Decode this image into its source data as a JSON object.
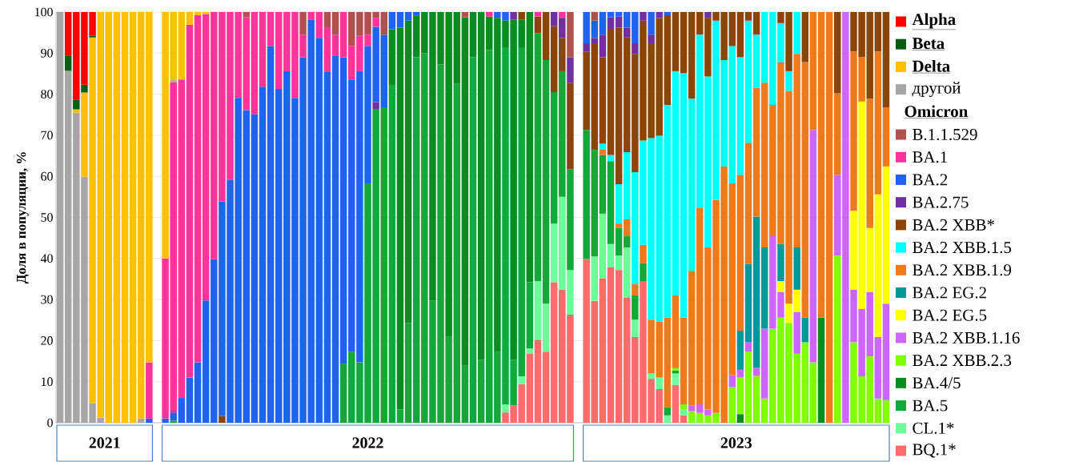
{
  "chart_data": {
    "type": "bar",
    "stacked": true,
    "ylabel": "Доля в популяции, %",
    "ylim": [
      0,
      100
    ],
    "yticks": [
      0,
      10,
      20,
      30,
      40,
      50,
      60,
      70,
      80,
      90,
      100
    ],
    "grid": "y",
    "legend": "right",
    "legend_title": "Omicron",
    "annotations": [
      "2021",
      "2022",
      "2023"
    ],
    "categories": [
      null,
      null,
      null,
      null,
      null,
      null,
      null,
      null,
      null,
      null,
      null,
      null,
      null,
      null,
      null,
      null,
      null,
      null,
      null,
      null,
      null,
      null,
      null,
      null,
      null,
      null,
      null,
      null,
      null,
      null,
      null,
      null,
      null,
      null,
      null,
      null,
      null,
      null,
      null,
      null,
      null,
      null,
      null,
      null,
      null,
      null,
      null,
      null,
      null,
      null,
      null,
      null,
      null,
      null,
      null,
      null,
      null,
      null,
      null,
      null,
      null,
      null,
      null,
      null,
      null,
      null,
      null,
      null,
      null,
      null,
      null,
      null,
      null,
      null,
      null,
      null,
      null,
      null,
      null,
      null,
      null,
      null,
      null,
      null,
      null,
      null,
      null,
      null,
      null,
      null,
      null,
      null,
      null,
      null,
      null,
      null,
      null,
      null,
      null,
      null,
      null,
      null,
      null
    ],
    "series": [
      {
        "name": "BQ.1*",
        "color": "#ff6b6b",
        "values": [
          null,
          null,
          null,
          null,
          null,
          null,
          null,
          null,
          null,
          null,
          null,
          null,
          null,
          null,
          null,
          null,
          null,
          null,
          null,
          null,
          null,
          null,
          null,
          null,
          null,
          null,
          null,
          null,
          null,
          null,
          null,
          null,
          null,
          null,
          null,
          null,
          null,
          null,
          null,
          null,
          null,
          null,
          null,
          null,
          null,
          null,
          null,
          null,
          null,
          null,
          null,
          null,
          null,
          null,
          null,
          2.5,
          4.2,
          9.4,
          16.8,
          20.1,
          17.3,
          34.2,
          32.4,
          26.3,
          null,
          39.9,
          29.7,
          35.2,
          37.9,
          37.2,
          30.5,
          20.9,
          34.5,
          10.7,
          8.2,
          null,
          9.2,
          1.8,
          null,
          null,
          null,
          null,
          null,
          null,
          null,
          null,
          null,
          null,
          null,
          null,
          null,
          null,
          null,
          null,
          null,
          null,
          null,
          null,
          null,
          null,
          null,
          null,
          null
        ]
      },
      {
        "name": "CL.1*",
        "color": "#6cfc9a",
        "values": [
          null,
          null,
          null,
          null,
          null,
          null,
          null,
          null,
          null,
          null,
          null,
          null,
          null,
          null,
          null,
          null,
          null,
          null,
          null,
          null,
          null,
          null,
          null,
          null,
          null,
          null,
          null,
          null,
          null,
          null,
          null,
          null,
          null,
          null,
          null,
          null,
          null,
          null,
          null,
          null,
          null,
          null,
          null,
          null,
          null,
          null,
          null,
          null,
          null,
          null,
          null,
          null,
          null,
          null,
          null,
          2.0,
          null,
          1.9,
          1.3,
          14.4,
          11.7,
          14.3,
          22.6,
          10.9,
          null,
          null,
          10.8,
          15.7,
          5.6,
          3.5,
          12.2,
          4.2,
          null,
          1.3,
          2.8,
          1.8,
          2.8,
          1.4,
          null,
          null,
          null,
          null,
          null,
          null,
          null,
          null,
          null,
          null,
          null,
          null,
          null,
          null,
          null,
          null,
          null,
          null,
          null,
          null,
          null,
          null,
          null,
          null,
          null
        ]
      },
      {
        "name": "BA.5",
        "color": "#12a83a",
        "values": [
          null,
          null,
          null,
          null,
          null,
          null,
          null,
          null,
          null,
          null,
          null,
          null,
          null,
          null,
          0.5,
          null,
          null,
          null,
          null,
          null,
          null,
          null,
          null,
          null,
          null,
          null,
          null,
          null,
          null,
          null,
          null,
          null,
          null,
          null,
          null,
          14.4,
          17.3,
          14.7,
          58.3,
          76.4,
          76.8,
          82.1,
          3.2,
          24.3,
          89.0,
          90.0,
          29.8,
          87.3,
          20.9,
          82.6,
          14.0,
          89.0,
          15.3,
          90.8,
          17.2,
          86.9,
          11.1,
          80.1,
          16.1,
          60.4,
          59.3,
          32.0,
          30.6,
          24.5,
          null,
          31.4,
          25.9,
          14.3,
          20.2,
          6.7,
          2.7,
          5.9,
          4.4,
          null,
          null,
          2.0,
          0.7,
          null,
          null,
          null,
          null,
          null,
          null,
          null,
          null,
          null,
          null,
          null,
          null,
          null,
          null,
          null,
          null,
          null,
          null,
          null,
          null,
          null,
          null,
          null,
          null,
          null,
          null
        ]
      },
      {
        "name": "BA.4/5",
        "color": "#098c20",
        "values": [
          null,
          null,
          null,
          null,
          null,
          null,
          null,
          null,
          null,
          null,
          null,
          null,
          null,
          null,
          null,
          null,
          null,
          null,
          null,
          null,
          null,
          null,
          null,
          null,
          null,
          null,
          null,
          null,
          null,
          null,
          null,
          null,
          null,
          null,
          null,
          null,
          null,
          null,
          null,
          null,
          null,
          13.7,
          93.0,
          73.6,
          10.2,
          10.0,
          70.2,
          12.7,
          79.1,
          17.4,
          84.7,
          11.0,
          84.7,
          8.1,
          81.4,
          6.5,
          82.9,
          6.8,
          65.8,
          null,
          null,
          null,
          null,
          null,
          null,
          null,
          null,
          null,
          null,
          null,
          null,
          null,
          null,
          null,
          null,
          null,
          null,
          null,
          null,
          null,
          null,
          null,
          null,
          null,
          2.1,
          null,
          null,
          null,
          null,
          null,
          null,
          null,
          null,
          null,
          25.6,
          null,
          null,
          null,
          null,
          null,
          null,
          null,
          null
        ]
      },
      {
        "name": "BA.2 XBB.2.3",
        "color": "#80ff00",
        "values": [
          null,
          null,
          null,
          null,
          null,
          null,
          null,
          null,
          null,
          null,
          null,
          null,
          null,
          null,
          null,
          null,
          null,
          null,
          null,
          null,
          null,
          null,
          null,
          null,
          null,
          null,
          null,
          null,
          null,
          null,
          null,
          null,
          null,
          null,
          null,
          null,
          null,
          null,
          null,
          null,
          null,
          null,
          null,
          null,
          null,
          null,
          null,
          null,
          null,
          null,
          null,
          null,
          null,
          null,
          null,
          null,
          null,
          null,
          null,
          null,
          null,
          null,
          null,
          null,
          null,
          null,
          null,
          null,
          null,
          null,
          null,
          null,
          null,
          null,
          null,
          null,
          0.6,
          1.3,
          2.9,
          2.4,
          1.8,
          2.4,
          null,
          8.7,
          8.9,
          17.3,
          11.4,
          5.9,
          22.9,
          25.6,
          24.3,
          16.8,
          19.6,
          14.7,
          null,
          null,
          40.7,
          null,
          19.6,
          11.3,
          16.2,
          5.9,
          5.5
        ]
      },
      {
        "name": "BA.2 XBB.1.16",
        "color": "#cc66ff",
        "values": [
          null,
          null,
          null,
          null,
          null,
          null,
          null,
          null,
          null,
          null,
          null,
          null,
          null,
          null,
          null,
          null,
          null,
          null,
          null,
          null,
          null,
          null,
          null,
          null,
          null,
          null,
          null,
          null,
          null,
          null,
          null,
          null,
          null,
          null,
          null,
          null,
          null,
          null,
          null,
          null,
          null,
          null,
          null,
          null,
          null,
          null,
          null,
          null,
          null,
          null,
          null,
          null,
          null,
          null,
          null,
          null,
          null,
          null,
          null,
          null,
          null,
          null,
          null,
          null,
          null,
          null,
          null,
          null,
          null,
          null,
          null,
          null,
          null,
          null,
          null,
          null,
          null,
          null,
          1.3,
          2.1,
          1.4,
          null,
          null,
          2.9,
          1.9,
          2.3,
          2.0,
          17.0,
          22.5,
          6.2,
          null,
          10.2,
          null,
          56.6,
          null,
          null,
          19.7,
          100,
          12.8,
          16.4,
          15.6,
          15.0,
          23.5
        ]
      },
      {
        "name": "BA.2 EG.5",
        "color": "#ffff00",
        "values": [
          null,
          null,
          null,
          null,
          null,
          null,
          null,
          null,
          null,
          null,
          null,
          null,
          null,
          null,
          null,
          null,
          null,
          null,
          null,
          null,
          null,
          null,
          null,
          null,
          null,
          null,
          null,
          null,
          null,
          null,
          null,
          null,
          null,
          null,
          null,
          null,
          null,
          null,
          null,
          null,
          null,
          null,
          null,
          null,
          null,
          null,
          null,
          null,
          null,
          null,
          null,
          null,
          null,
          null,
          null,
          null,
          null,
          null,
          null,
          null,
          null,
          null,
          null,
          null,
          null,
          null,
          null,
          null,
          null,
          null,
          null,
          null,
          null,
          null,
          null,
          null,
          null,
          null,
          null,
          null,
          null,
          null,
          null,
          null,
          null,
          null,
          null,
          null,
          null,
          2.7,
          4.7,
          5.4,
          null,
          null,
          null,
          null,
          null,
          null,
          19.2,
          50.5,
          15.6,
          34.7,
          33.4
        ]
      },
      {
        "name": "BA.2 EG.2",
        "color": "#009999",
        "values": [
          null,
          null,
          null,
          null,
          null,
          null,
          null,
          null,
          null,
          null,
          null,
          null,
          null,
          null,
          null,
          null,
          null,
          null,
          null,
          null,
          null,
          null,
          null,
          null,
          null,
          null,
          null,
          null,
          null,
          null,
          null,
          null,
          null,
          null,
          null,
          null,
          null,
          null,
          null,
          null,
          null,
          null,
          null,
          null,
          null,
          null,
          null,
          null,
          null,
          null,
          null,
          null,
          null,
          null,
          null,
          null,
          null,
          null,
          null,
          null,
          null,
          null,
          null,
          null,
          null,
          null,
          null,
          null,
          null,
          null,
          null,
          null,
          null,
          null,
          null,
          null,
          null,
          null,
          null,
          null,
          null,
          null,
          null,
          null,
          9.5,
          19.1,
          36.8,
          19.8,
          null,
          9.0,
          null,
          10.3,
          6.0,
          null,
          null,
          null,
          null,
          null,
          null,
          null,
          null,
          null,
          null
        ]
      },
      {
        "name": "BA.2 XBB.1.9",
        "color": "#ee7a1c",
        "values": [
          null,
          null,
          null,
          null,
          null,
          null,
          null,
          null,
          null,
          null,
          null,
          null,
          null,
          null,
          null,
          null,
          null,
          null,
          null,
          null,
          null,
          null,
          null,
          null,
          null,
          null,
          null,
          null,
          null,
          null,
          null,
          null,
          null,
          null,
          null,
          null,
          null,
          null,
          null,
          null,
          null,
          null,
          null,
          null,
          null,
          null,
          null,
          null,
          null,
          null,
          null,
          null,
          null,
          null,
          null,
          null,
          null,
          null,
          null,
          null,
          null,
          null,
          null,
          null,
          null,
          null,
          null,
          1.3,
          null,
          1.1,
          4.1,
          2.7,
          4.4,
          13.1,
          13.6,
          21.8,
          17.7,
          21.1,
          32.8,
          47.9,
          39.5,
          51.9,
          62.4,
          46.7,
          38.0,
          29.5,
          31.4,
          40.1,
          32.0,
          44.2,
          51.8,
          47.1,
          62.2,
          28.7,
          74.4,
          100,
          19.8,
          null,
          38.8,
          10.8,
          31.5,
          34.8,
          14.4
        ]
      },
      {
        "name": "BA.2 XBB.1.5",
        "color": "#00ffff",
        "values": [
          null,
          null,
          null,
          null,
          null,
          null,
          null,
          null,
          null,
          null,
          null,
          null,
          null,
          null,
          null,
          null,
          null,
          null,
          null,
          null,
          null,
          null,
          null,
          null,
          null,
          null,
          null,
          null,
          null,
          null,
          null,
          null,
          null,
          null,
          null,
          null,
          null,
          null,
          null,
          null,
          null,
          null,
          null,
          null,
          null,
          null,
          null,
          null,
          null,
          null,
          null,
          null,
          null,
          null,
          null,
          null,
          null,
          null,
          null,
          null,
          null,
          null,
          null,
          null,
          null,
          null,
          null,
          1.5,
          1.5,
          9.6,
          16.4,
          27.3,
          25.4,
          44.2,
          45.3,
          51.8,
          54.6,
          59.5,
          41.9,
          42.1,
          41.6,
          43.6,
          25.9,
          33.4,
          28.6,
          29.7,
          12.9,
          17.2,
          22.6,
          9.6,
          4.8,
          10.2,
          null,
          null,
          null,
          null,
          null,
          null,
          null,
          null,
          null,
          null,
          null
        ]
      },
      {
        "name": "BA.2 XBB*",
        "color": "#8b4506",
        "values": [
          null,
          null,
          null,
          null,
          null,
          null,
          null,
          null,
          null,
          null,
          null,
          null,
          null,
          null,
          null,
          null,
          null,
          null,
          null,
          null,
          1.6,
          null,
          null,
          null,
          null,
          null,
          null,
          null,
          null,
          null,
          null,
          null,
          null,
          null,
          null,
          null,
          null,
          null,
          null,
          null,
          null,
          null,
          null,
          null,
          null,
          null,
          null,
          null,
          null,
          null,
          null,
          null,
          null,
          null,
          null,
          null,
          null,
          1.8,
          null,
          4.0,
          11.7,
          16.1,
          8.1,
          21.1,
          null,
          19.1,
          26.0,
          21.0,
          30.7,
          38.1,
          27.9,
          28.8,
          29.2,
          23.1,
          28.7,
          21.8,
          14.4,
          14.9,
          21.1,
          5.5,
          14.3,
          2.1,
          11.7,
          8.3,
          11.0,
          2.1,
          5.5,
          null,
          null,
          2.7,
          14.4,
          null,
          12.2,
          null,
          null,
          null,
          19.8,
          null,
          9.6,
          11.0,
          21.1,
          9.6,
          23.2
        ]
      },
      {
        "name": "BA.2.75",
        "color": "#7030a0",
        "values": [
          null,
          null,
          null,
          null,
          null,
          null,
          null,
          null,
          null,
          null,
          null,
          null,
          null,
          null,
          null,
          null,
          null,
          null,
          null,
          null,
          null,
          null,
          null,
          null,
          null,
          null,
          null,
          null,
          null,
          null,
          null,
          null,
          null,
          null,
          null,
          null,
          null,
          null,
          null,
          1.7,
          null,
          null,
          null,
          null,
          null,
          null,
          null,
          null,
          null,
          null,
          null,
          null,
          null,
          null,
          null,
          null,
          1.8,
          null,
          null,
          null,
          null,
          3.4,
          4.9,
          6.2,
          null,
          2.0,
          1.3,
          5.5,
          2.8,
          2.7,
          2.4,
          2.6,
          2.1,
          2.1,
          1.4,
          null,
          null,
          null,
          null,
          null,
          1.4,
          null,
          null,
          null,
          null,
          null,
          null,
          null,
          null,
          null,
          null,
          null,
          null,
          null,
          null,
          null,
          null,
          null,
          null,
          null,
          null,
          null,
          null
        ]
      },
      {
        "name": "BA.2",
        "color": "#1f63f0",
        "values": [
          null,
          null,
          null,
          null,
          null,
          null,
          null,
          null,
          null,
          null,
          null,
          1.0,
          null,
          1.0,
          2.0,
          6.2,
          11.0,
          14.7,
          29.8,
          39.8,
          52.3,
          59.1,
          79.1,
          76.1,
          75.1,
          81.8,
          91.7,
          81.3,
          85.6,
          79.1,
          89.0,
          98.2,
          93.7,
          85.4,
          89.4,
          74.6,
          66.3,
          70.9,
          33.4,
          18.3,
          17.7,
          4.2,
          3.8,
          2.1,
          0.8,
          null,
          null,
          null,
          null,
          null,
          null,
          null,
          null,
          null,
          1.4,
          2.1,
          null,
          null,
          null,
          null,
          null,
          null,
          null,
          null,
          null,
          7.6,
          4.2,
          5.5,
          1.3,
          1.1,
          3.8,
          7.6,
          null,
          5.5,
          null,
          0.8,
          null,
          null,
          null,
          null,
          null,
          null,
          null,
          null,
          null,
          null,
          null,
          null,
          null,
          null,
          null,
          null,
          null,
          null,
          null,
          null,
          null,
          null,
          null,
          null,
          null,
          null,
          null
        ]
      },
      {
        "name": "BA.1",
        "color": "#ff3399",
        "values": [
          null,
          null,
          null,
          null,
          null,
          null,
          null,
          null,
          null,
          null,
          null,
          13.7,
          null,
          39.0,
          80.4,
          77.4,
          85.9,
          84.5,
          69.7,
          60.2,
          46.1,
          40.9,
          20.9,
          22.6,
          24.9,
          18.2,
          8.3,
          18.7,
          14.4,
          20.9,
          5.5,
          1.8,
          6.3,
          10.9,
          5.1,
          11.0,
          8.1,
          8.6,
          2.8,
          2.2,
          null,
          null,
          null,
          null,
          null,
          null,
          null,
          null,
          null,
          null,
          null,
          null,
          null,
          1.1,
          null,
          null,
          null,
          null,
          null,
          1.1,
          null,
          null,
          1.4,
          null,
          null,
          null,
          null,
          null,
          null,
          null,
          null,
          null,
          null,
          null,
          null,
          null,
          null,
          null,
          null,
          null,
          null,
          null,
          null,
          null,
          null,
          null,
          null,
          null,
          null,
          null,
          null,
          null,
          null,
          null,
          null,
          null,
          null,
          null,
          null,
          null,
          null,
          null,
          null
        ]
      },
      {
        "name": "B.1.1.529",
        "color": "#b0504f",
        "values": [
          null,
          null,
          null,
          null,
          null,
          null,
          null,
          null,
          null,
          null,
          null,
          null,
          null,
          null,
          null,
          null,
          null,
          null,
          null,
          null,
          null,
          null,
          null,
          1.3,
          null,
          null,
          null,
          null,
          null,
          null,
          5.5,
          null,
          null,
          3.7,
          5.5,
          null,
          8.3,
          5.8,
          5.5,
          1.4,
          5.5,
          null,
          null,
          null,
          null,
          null,
          null,
          null,
          null,
          null,
          1.3,
          null,
          null,
          null,
          null,
          null,
          null,
          null,
          null,
          null,
          null,
          null,
          null,
          11.0,
          null,
          null,
          2.1,
          null,
          null,
          null,
          null,
          null,
          null,
          null,
          null,
          null,
          null,
          null,
          null,
          null,
          null,
          null,
          null,
          null,
          null,
          null,
          null,
          null,
          null,
          null,
          null,
          null,
          null,
          null,
          null,
          null,
          null,
          null,
          null,
          null,
          null,
          null,
          null
        ]
      },
      {
        "name": "другой",
        "color": "#a6a6a6",
        "values": [
          100,
          85.7,
          75.5,
          59.9,
          4.8,
          1.2,
          null,
          null,
          null,
          null,
          1.0,
          null,
          null,
          null,
          0.5,
          null,
          null,
          null,
          null,
          null,
          null,
          null,
          null,
          null,
          null,
          null,
          null,
          null,
          null,
          null,
          null,
          null,
          null,
          null,
          null,
          null,
          null,
          null,
          null,
          null,
          null,
          null,
          null,
          null,
          null,
          null,
          null,
          null,
          null,
          null,
          null,
          null,
          null,
          null,
          null,
          null,
          null,
          null,
          null,
          null,
          null,
          null,
          null,
          null,
          null,
          null,
          null,
          null,
          null,
          null,
          null,
          null,
          null,
          null,
          null,
          null,
          null,
          null,
          null,
          null,
          null,
          null,
          null,
          null,
          null,
          null,
          null,
          null,
          null,
          null,
          null,
          null,
          null,
          null,
          null,
          null,
          null,
          null,
          null,
          null,
          null,
          null,
          null
        ]
      },
      {
        "name": "Delta",
        "color": "#ffc000",
        "values": [
          null,
          null,
          0.8,
          20.5,
          89.0,
          98.8,
          100,
          100,
          100,
          100,
          99.0,
          85.3,
          null,
          60.0,
          16.6,
          16.4,
          3.1,
          0.8,
          0.5,
          null,
          null,
          null,
          null,
          null,
          null,
          null,
          null,
          null,
          null,
          null,
          null,
          null,
          null,
          null,
          null,
          null,
          null,
          null,
          null,
          null,
          null,
          null,
          null,
          null,
          null,
          null,
          null,
          null,
          null,
          null,
          null,
          null,
          null,
          null,
          null,
          null,
          null,
          null,
          null,
          null,
          null,
          null,
          null,
          null,
          null,
          null,
          null,
          null,
          null,
          null,
          null,
          null,
          null,
          null,
          null,
          null,
          null,
          null,
          null,
          null,
          null,
          null,
          null,
          null,
          null,
          null,
          null,
          null,
          null,
          null,
          null,
          null,
          null,
          null,
          null,
          null,
          null,
          null,
          null,
          null,
          null,
          null,
          null
        ]
      },
      {
        "name": "Beta",
        "color": "#0a5e14",
        "values": [
          null,
          3.6,
          2.4,
          1.9,
          0.5,
          null,
          null,
          null,
          null,
          null,
          null,
          null,
          null,
          null,
          null,
          null,
          null,
          null,
          null,
          null,
          null,
          null,
          null,
          null,
          null,
          null,
          null,
          null,
          null,
          null,
          null,
          null,
          null,
          null,
          null,
          null,
          null,
          null,
          null,
          null,
          null,
          null,
          null,
          null,
          null,
          null,
          null,
          null,
          null,
          null,
          null,
          null,
          null,
          null,
          null,
          null,
          null,
          null,
          null,
          null,
          null,
          null,
          null,
          null,
          null,
          null,
          null,
          null,
          null,
          null,
          null,
          null,
          null,
          null,
          null,
          null,
          null,
          null,
          null,
          null,
          null,
          null,
          null,
          null,
          null,
          null,
          null,
          null,
          null,
          null,
          null,
          null,
          null,
          null,
          null,
          null,
          null,
          null,
          null,
          null,
          null,
          null,
          null
        ]
      },
      {
        "name": "Alpha",
        "color": "#ff0000",
        "values": [
          null,
          10.7,
          21.3,
          17.7,
          5.7,
          null,
          null,
          null,
          null,
          null,
          null,
          null,
          null,
          null,
          null,
          null,
          null,
          null,
          null,
          null,
          null,
          null,
          null,
          null,
          null,
          null,
          null,
          null,
          null,
          null,
          null,
          null,
          null,
          null,
          null,
          null,
          null,
          null,
          null,
          null,
          null,
          null,
          null,
          null,
          null,
          null,
          null,
          null,
          null,
          null,
          null,
          null,
          null,
          null,
          null,
          null,
          null,
          null,
          null,
          null,
          null,
          null,
          null,
          null,
          null,
          null,
          null,
          null,
          null,
          null,
          null,
          null,
          null,
          null,
          null,
          null,
          null,
          null,
          null,
          null,
          null,
          null,
          null,
          null,
          null,
          null,
          null,
          null,
          null,
          null,
          null,
          null,
          null,
          null,
          null,
          null,
          null,
          null,
          null,
          null,
          null,
          null,
          null
        ]
      }
    ]
  }
}
